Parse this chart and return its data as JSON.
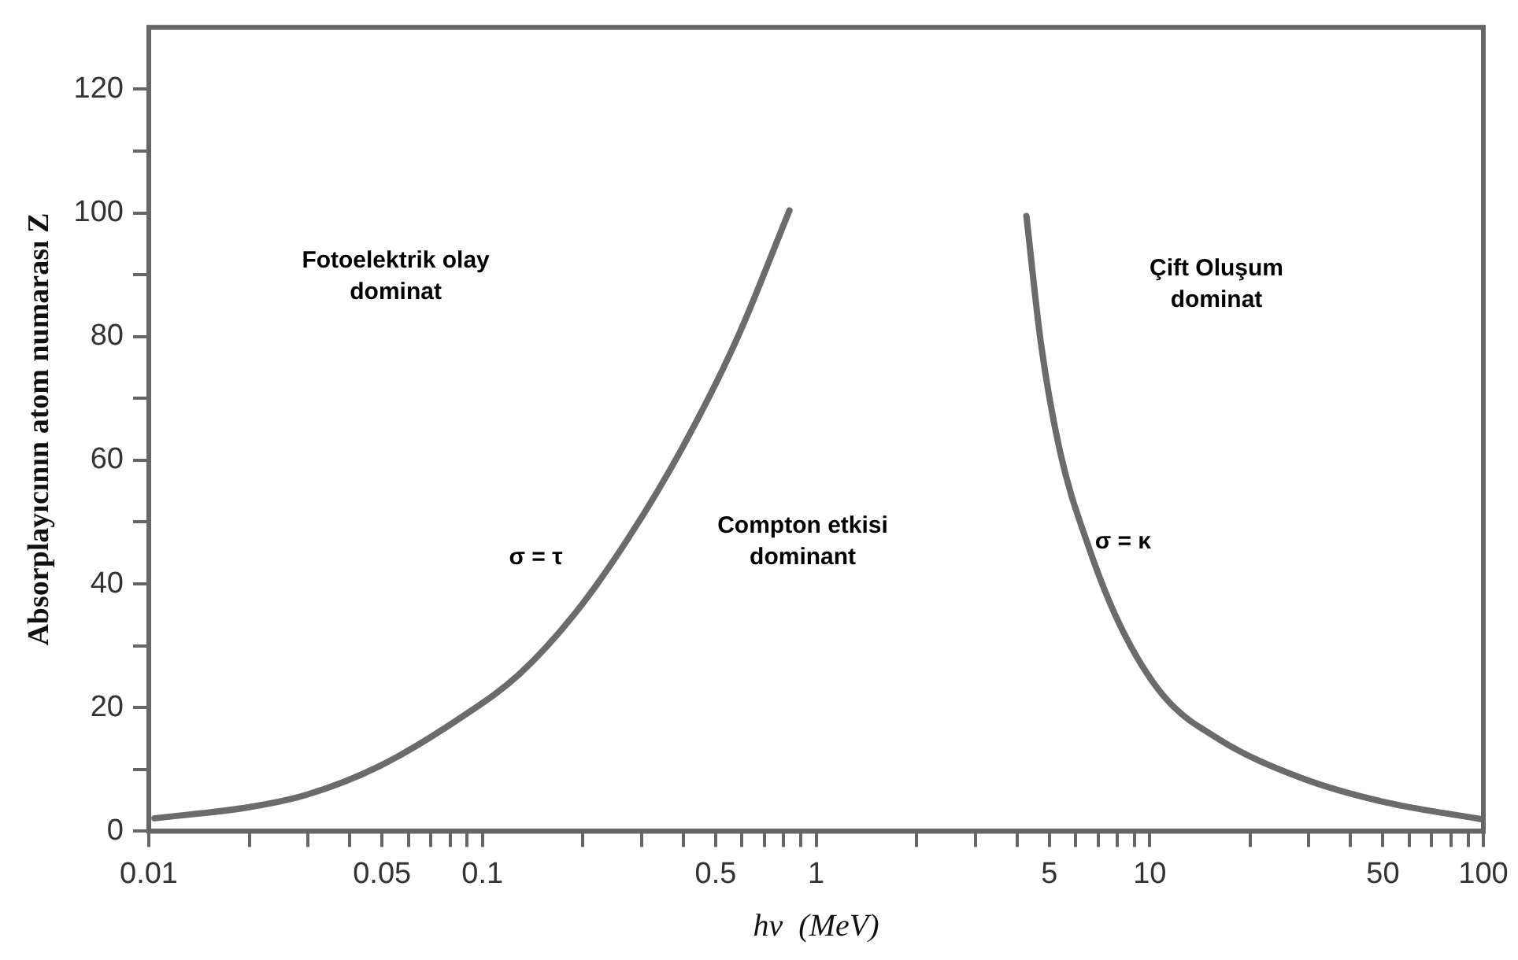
{
  "chart_data": {
    "type": "line",
    "xlabel": "hν  (MeV)",
    "ylabel": "Absorplayıcının atom numarası Z",
    "log": "x",
    "grid": false,
    "legend": false,
    "marker": "none",
    "line_style": "solid",
    "xlim": [
      0.01,
      100
    ],
    "ylim": [
      0,
      130
    ],
    "xticks": [
      {
        "value": 0.01,
        "label": "0.01"
      },
      {
        "value": 0.02,
        "label": null
      },
      {
        "value": 0.03,
        "label": null
      },
      {
        "value": 0.04,
        "label": null
      },
      {
        "value": 0.05,
        "label": "0.05"
      },
      {
        "value": 0.06,
        "label": null
      },
      {
        "value": 0.07,
        "label": null
      },
      {
        "value": 0.08,
        "label": null
      },
      {
        "value": 0.09,
        "label": null
      },
      {
        "value": 0.1,
        "label": "0.1"
      },
      {
        "value": 0.2,
        "label": null
      },
      {
        "value": 0.3,
        "label": null
      },
      {
        "value": 0.4,
        "label": null
      },
      {
        "value": 0.5,
        "label": "0.5"
      },
      {
        "value": 0.6,
        "label": null
      },
      {
        "value": 0.7,
        "label": null
      },
      {
        "value": 0.8,
        "label": null
      },
      {
        "value": 0.9,
        "label": null
      },
      1,
      {
        "value": 2,
        "label": null
      },
      {
        "value": 3,
        "label": null
      },
      {
        "value": 4,
        "label": null
      },
      5,
      {
        "value": 6,
        "label": null
      },
      {
        "value": 7,
        "label": null
      },
      {
        "value": 8,
        "label": null
      },
      {
        "value": 9,
        "label": null
      },
      10,
      {
        "value": 20,
        "label": null
      },
      {
        "value": 30,
        "label": null
      },
      {
        "value": 40,
        "label": null
      },
      50,
      {
        "value": 60,
        "label": null
      },
      {
        "value": 70,
        "label": null
      },
      {
        "value": 80,
        "label": null
      },
      {
        "value": 90,
        "label": null
      },
      100
    ],
    "yticks": [
      0,
      {
        "value": 10,
        "label": null
      },
      20,
      {
        "value": 30,
        "label": null
      },
      40,
      {
        "value": 50,
        "label": null
      },
      60,
      {
        "value": 70,
        "label": null
      },
      80,
      {
        "value": 90,
        "label": null
      },
      100,
      {
        "value": 110,
        "label": null
      },
      120
    ],
    "series": [
      {
        "color": "#6b6b6b",
        "x": [
          0.0104,
          0.02,
          0.0297,
          0.049,
          0.0885,
          0.129,
          0.188,
          0.273,
          0.399,
          0.581,
          0.832
        ],
        "values": [
          2.1,
          3.9,
          5.9,
          10.5,
          18.8,
          25.4,
          35,
          47.3,
          62.2,
          79.8,
          100.4
        ]
      },
      {
        "color": "#6b6b6b",
        "x": [
          4.27,
          4.72,
          5.39,
          6.52,
          8.15,
          11,
          16.1,
          28.2,
          49.7,
          99.8
        ],
        "values": [
          99.5,
          78.9,
          61.3,
          46.4,
          33.3,
          21.9,
          14.9,
          8.7,
          4.8,
          1.9
        ]
      }
    ],
    "annotations": [
      "Fotoelektrik olay\ndominat",
      "Compton etkisi\ndominant",
      "Çift Oluşum\ndominat",
      "σ = τ",
      "σ = κ"
    ]
  }
}
